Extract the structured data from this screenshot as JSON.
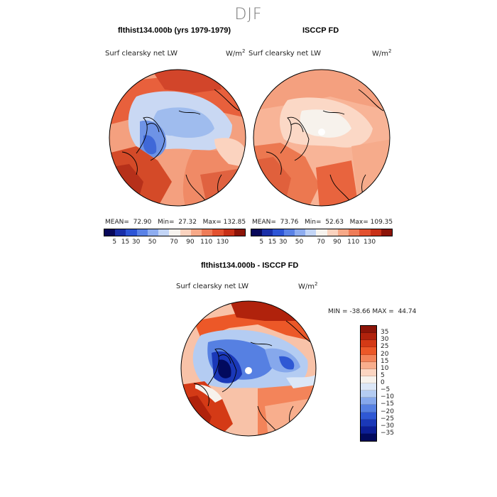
{
  "title": "DJF",
  "panel_left": {
    "subtitle": "flthist134.000b (yrs 1979-1979)",
    "field": "Surf clearsky net LW",
    "unit_base": "W/m",
    "unit_exp": "2",
    "mean_label": "MEAN=",
    "mean": "72.90",
    "min_label": "Min=",
    "min": "27.32",
    "max_label": "Max=",
    "max": "132.85"
  },
  "panel_right": {
    "subtitle": "ISCCP FD",
    "field": "Surf clearsky net LW",
    "unit_base": "W/m",
    "unit_exp": "2",
    "mean_label": "MEAN=",
    "mean": "73.76",
    "min_label": "Min=",
    "min": "52.63",
    "max_label": "Max=",
    "max": "109.35"
  },
  "panel_diff": {
    "subtitle": "flthist134.000b - ISCCP FD",
    "field": "Surf clearsky net LW",
    "unit_base": "W/m",
    "unit_exp": "2",
    "min_label": "MIN =",
    "min": "-38.66",
    "max_label": "MAX =",
    "max": "44.74"
  },
  "abs_colorbar": {
    "colors": [
      "#08085a",
      "#1a2fa8",
      "#2d55d6",
      "#5a82e6",
      "#8eadf0",
      "#c3d5f6",
      "#f6f3ee",
      "#fbd3bf",
      "#f7a988",
      "#ee7c58",
      "#e3512f",
      "#c83017",
      "#8c1408"
    ],
    "ticks": [
      "5",
      "15",
      "30",
      "50",
      "70",
      "90",
      "110",
      "130"
    ]
  },
  "diff_colorbar": {
    "colors": [
      "#8c1408",
      "#b0220c",
      "#d43a16",
      "#ec5828",
      "#f3845a",
      "#f8ae8d",
      "#fbd5c1",
      "#f7f2ec",
      "#dce7f7",
      "#b4ccf2",
      "#86a8ec",
      "#5680e2",
      "#2f58d4",
      "#1a38b8",
      "#0c1e96",
      "#020a5e"
    ],
    "ticks": [
      "35",
      "30",
      "25",
      "20",
      "15",
      "10",
      "5",
      "0",
      "−5",
      "−10",
      "−15",
      "−20",
      "−25",
      "−30",
      "−35"
    ]
  }
}
